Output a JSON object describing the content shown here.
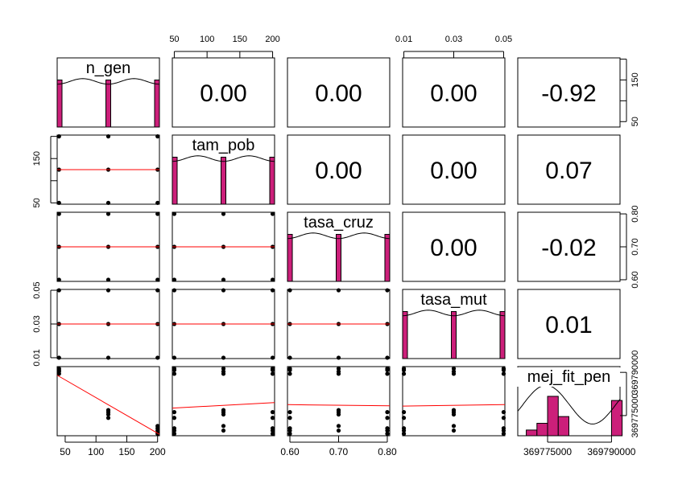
{
  "chart_data": {
    "type": "scatter",
    "variables": [
      "n_gen",
      "tam_pob",
      "tasa_cruz",
      "tasa_mut",
      "mej_fit_pen"
    ],
    "correlations": [
      {
        "row": 0,
        "col": 1,
        "label": "0.00"
      },
      {
        "row": 0,
        "col": 2,
        "label": "0.00"
      },
      {
        "row": 0,
        "col": 3,
        "label": "0.00"
      },
      {
        "row": 0,
        "col": 4,
        "label": "-0.92"
      },
      {
        "row": 1,
        "col": 2,
        "label": "0.00"
      },
      {
        "row": 1,
        "col": 3,
        "label": "0.00"
      },
      {
        "row": 1,
        "col": 4,
        "label": "0.07"
      },
      {
        "row": 2,
        "col": 3,
        "label": "0.00"
      },
      {
        "row": 2,
        "col": 4,
        "label": "-0.02"
      },
      {
        "row": 3,
        "col": 4,
        "label": "0.01"
      }
    ],
    "axes": {
      "n_gen": {
        "range": [
          37,
          203
        ],
        "ticks": [
          50,
          100,
          150,
          200
        ],
        "labels": [
          "50",
          "100",
          "150",
          "200"
        ]
      },
      "tam_pob": {
        "range": [
          47,
          203
        ],
        "ticks": [
          50,
          100,
          150,
          200
        ],
        "labels": [
          "50",
          "",
          "150",
          ""
        ]
      },
      "tasa_cruz": {
        "range": [
          0.595,
          0.805
        ],
        "ticks": [
          0.6,
          0.7,
          0.8
        ],
        "labels": [
          "0.60",
          "0.70",
          "0.80"
        ]
      },
      "tasa_mut": {
        "range": [
          0.0095,
          0.0505
        ],
        "ticks": [
          0.01,
          0.03,
          0.05
        ],
        "labels": [
          "0.01",
          "0.03",
          "0.05"
        ]
      },
      "mej_fit_pen": {
        "range": [
          369768000,
          369792000
        ],
        "ticks": [
          369775000,
          369790000
        ],
        "labels": [
          "369775000",
          "369790000"
        ]
      }
    },
    "tick_labels_top": {
      "tam_pob": [
        "50",
        "100",
        "150",
        "200"
      ],
      "tasa_mut": [
        "0.01",
        "0.03",
        "0.05"
      ]
    },
    "tick_labels_bottom": {
      "n_gen": [
        "50",
        "100",
        "150",
        "200"
      ],
      "tasa_cruz": [
        "0.60",
        "0.70",
        "0.80"
      ],
      "mej_fit_pen": [
        "369775000",
        "369790000"
      ]
    },
    "tick_labels_left": {
      "tam_pob": [
        "50",
        "150"
      ],
      "tasa_mut": [
        "0.01",
        "0.03",
        "0.05"
      ]
    },
    "tick_labels_right": {
      "n_gen": [
        "50",
        "150"
      ],
      "tasa_cruz": [
        "0.60",
        "0.70",
        "0.80"
      ],
      "mej_fit_pen": [
        "369775000",
        "369790000"
      ]
    },
    "levels": {
      "n_gen": [
        40,
        120,
        200
      ],
      "tam_pob": [
        50,
        125,
        200
      ],
      "tasa_cruz": [
        0.6,
        0.7,
        0.8
      ],
      "tasa_mut": [
        0.01,
        0.03,
        0.05
      ]
    },
    "fitness_by_ngen": {
      "40": [
        369789500,
        369790300,
        369790800,
        369791300
      ],
      "120": [
        369774200,
        369775400,
        369776200,
        369776900
      ],
      "200": [
        369768700,
        369769800,
        369770600,
        369771400
      ]
    },
    "histograms": {
      "mej_fit_pen": {
        "bins": [
          369770000,
          369772500,
          369775000,
          369777500,
          369780000,
          369782500,
          369785000,
          369787500,
          369790000,
          369792500
        ],
        "density": [
          0.11,
          0.24,
          0.76,
          0.37,
          0,
          0,
          0,
          0,
          0.68
        ]
      }
    },
    "colors": {
      "bar": "#cc1f7a",
      "fit_line": "#ff0000",
      "points": "#000000",
      "density_curve": "#000000"
    }
  }
}
